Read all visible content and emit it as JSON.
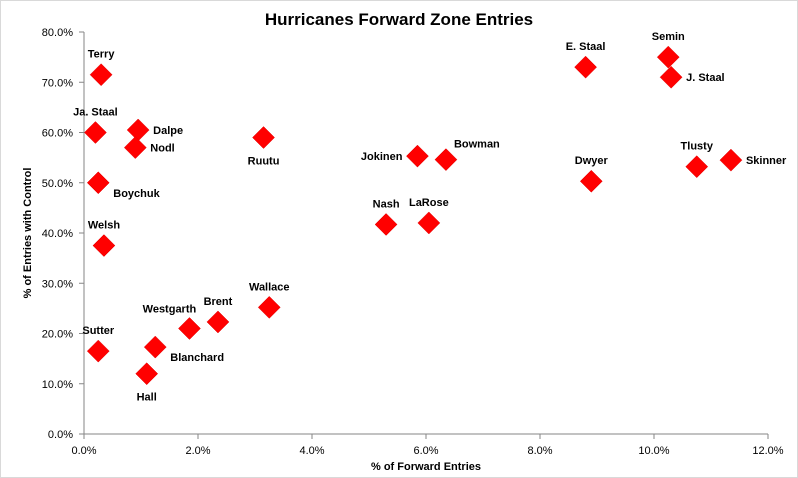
{
  "chart_data": {
    "type": "scatter",
    "title": "Hurricanes Forward Zone Entries",
    "xlabel": "% of Forward Entries",
    "ylabel": "% of Entries with Control",
    "xlim": [
      0,
      12
    ],
    "ylim": [
      0,
      80
    ],
    "xticks": [
      0,
      2,
      4,
      6,
      8,
      10,
      12
    ],
    "yticks": [
      0,
      10,
      20,
      30,
      40,
      50,
      60,
      70,
      80
    ],
    "xtick_labels": [
      "0.0%",
      "2.0%",
      "4.0%",
      "6.0%",
      "8.0%",
      "10.0%",
      "12.0%"
    ],
    "ytick_labels": [
      "0.0%",
      "10.0%",
      "20.0%",
      "30.0%",
      "40.0%",
      "50.0%",
      "60.0%",
      "70.0%",
      "80.0%"
    ],
    "grid": false,
    "legend": "none",
    "marker": "diamond",
    "marker_color": "#ff0000",
    "points": [
      {
        "label": "Terry",
        "x": 0.3,
        "y": 71.5,
        "label_pos": "above"
      },
      {
        "label": "Ja. Staal",
        "x": 0.2,
        "y": 60.0,
        "label_pos": "above"
      },
      {
        "label": "Dalpe",
        "x": 0.95,
        "y": 60.5,
        "label_pos": "right"
      },
      {
        "label": "Nodl",
        "x": 0.9,
        "y": 57.0,
        "label_pos": "right"
      },
      {
        "label": "Boychuk",
        "x": 0.25,
        "y": 50.0,
        "label_pos": "right-below"
      },
      {
        "label": "Welsh",
        "x": 0.35,
        "y": 37.5,
        "label_pos": "above"
      },
      {
        "label": "Sutter",
        "x": 0.25,
        "y": 16.5,
        "label_pos": "above"
      },
      {
        "label": "Hall",
        "x": 1.1,
        "y": 12.0,
        "label_pos": "below"
      },
      {
        "label": "Blanchard",
        "x": 1.25,
        "y": 17.3,
        "label_pos": "right-below"
      },
      {
        "label": "Westgarth",
        "x": 1.85,
        "y": 21.0,
        "label_pos": "above-left"
      },
      {
        "label": "Brent",
        "x": 2.35,
        "y": 22.3,
        "label_pos": "above"
      },
      {
        "label": "Wallace",
        "x": 3.25,
        "y": 25.2,
        "label_pos": "above"
      },
      {
        "label": "Ruutu",
        "x": 3.15,
        "y": 59.0,
        "label_pos": "below"
      },
      {
        "label": "Nash",
        "x": 5.3,
        "y": 41.7,
        "label_pos": "above"
      },
      {
        "label": "LaRose",
        "x": 6.05,
        "y": 42.0,
        "label_pos": "above"
      },
      {
        "label": "Jokinen",
        "x": 5.85,
        "y": 55.3,
        "label_pos": "left"
      },
      {
        "label": "Bowman",
        "x": 6.35,
        "y": 54.6,
        "label_pos": "above-right"
      },
      {
        "label": "E. Staal",
        "x": 8.8,
        "y": 73.0,
        "label_pos": "above"
      },
      {
        "label": "Dwyer",
        "x": 8.9,
        "y": 50.3,
        "label_pos": "above"
      },
      {
        "label": "Semin",
        "x": 10.25,
        "y": 75.0,
        "label_pos": "above"
      },
      {
        "label": "J. Staal",
        "x": 10.3,
        "y": 71.0,
        "label_pos": "right"
      },
      {
        "label": "Tlusty",
        "x": 10.75,
        "y": 53.2,
        "label_pos": "above"
      },
      {
        "label": "Skinner",
        "x": 11.35,
        "y": 54.5,
        "label_pos": "right"
      }
    ]
  }
}
